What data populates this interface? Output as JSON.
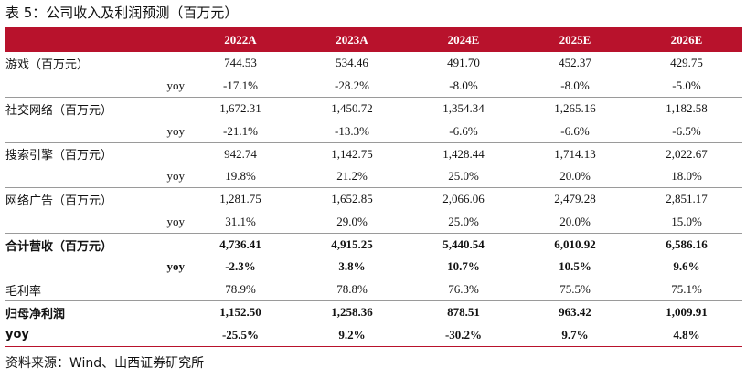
{
  "title": "表 5：公司收入及利润预测（百万元）",
  "columns": [
    "",
    "2022A",
    "2023A",
    "2024E",
    "2025E",
    "2026E"
  ],
  "rows": [
    {
      "label": "游戏（百万元）",
      "values": [
        "744.53",
        "534.46",
        "491.70",
        "452.37",
        "429.75"
      ],
      "bold": false,
      "sub": false,
      "group_end": false
    },
    {
      "label": "yoy",
      "values": [
        "-17.1%",
        "-28.2%",
        "-8.0%",
        "-8.0%",
        "-5.0%"
      ],
      "bold": false,
      "sub": true,
      "group_end": true
    },
    {
      "label": "社交网络（百万元）",
      "values": [
        "1,672.31",
        "1,450.72",
        "1,354.34",
        "1,265.16",
        "1,182.58"
      ],
      "bold": false,
      "sub": false,
      "group_end": false
    },
    {
      "label": "yoy",
      "values": [
        "-21.1%",
        "-13.3%",
        "-6.6%",
        "-6.6%",
        "-6.5%"
      ],
      "bold": false,
      "sub": true,
      "group_end": true
    },
    {
      "label": "搜索引擎（百万元）",
      "values": [
        "942.74",
        "1,142.75",
        "1,428.44",
        "1,714.13",
        "2,022.67"
      ],
      "bold": false,
      "sub": false,
      "group_end": false
    },
    {
      "label": "yoy",
      "values": [
        "19.8%",
        "21.2%",
        "25.0%",
        "20.0%",
        "18.0%"
      ],
      "bold": false,
      "sub": true,
      "group_end": true
    },
    {
      "label": "网络广告（百万元）",
      "values": [
        "1,281.75",
        "1,652.85",
        "2,066.06",
        "2,479.28",
        "2,851.17"
      ],
      "bold": false,
      "sub": false,
      "group_end": false
    },
    {
      "label": "yoy",
      "values": [
        "31.1%",
        "29.0%",
        "25.0%",
        "20.0%",
        "15.0%"
      ],
      "bold": false,
      "sub": true,
      "group_end": true
    },
    {
      "label": "合计营收（百万元）",
      "values": [
        "4,736.41",
        "4,915.25",
        "5,440.54",
        "6,010.92",
        "6,586.16"
      ],
      "bold": true,
      "sub": false,
      "group_end": false
    },
    {
      "label": "yoy",
      "values": [
        "-2.3%",
        "3.8%",
        "10.7%",
        "10.5%",
        "9.6%"
      ],
      "bold": true,
      "sub": true,
      "group_end": true
    },
    {
      "label": "毛利率",
      "values": [
        "78.9%",
        "78.8%",
        "76.3%",
        "75.5%",
        "75.1%"
      ],
      "bold": false,
      "sub": false,
      "group_end": true
    },
    {
      "label": "归母净利润",
      "values": [
        "1,152.50",
        "1,258.36",
        "878.51",
        "963.42",
        "1,009.91"
      ],
      "bold": true,
      "sub": false,
      "group_end": false
    },
    {
      "label": "yoy",
      "values": [
        "-25.5%",
        "9.2%",
        "-30.2%",
        "9.7%",
        "4.8%"
      ],
      "bold": true,
      "sub": false,
      "group_end": false
    }
  ],
  "source": "资料来源：Wind、山西证券研究所",
  "colors": {
    "header_bg": "#b8122c",
    "header_text": "#ffffff",
    "rule": "#9a9a9a"
  }
}
